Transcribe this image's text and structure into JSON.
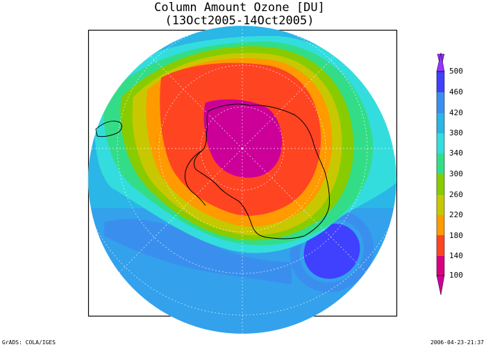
{
  "title": {
    "line1": "Column Amount Ozone [DU]",
    "line2": "(13Oct2005-14Oct2005)"
  },
  "colorbar": {
    "labels": [
      "500",
      "460",
      "420",
      "380",
      "340",
      "300",
      "260",
      "220",
      "180",
      "140",
      "100"
    ],
    "colors_bottom_to_top": [
      "#cc0099",
      "#d8007f",
      "#ff4422",
      "#ff9a00",
      "#c8c800",
      "#88cc00",
      "#33dd88",
      "#33dddd",
      "#2ab6e6",
      "#3a8fee",
      "#4040ff",
      "#9933ff"
    ]
  },
  "map": {
    "projection": "south-polar stereographic",
    "region": "Antarctica / Southern Hemisphere",
    "colors": {
      "low_100": "#cc0099",
      "band_140": "#ff4422",
      "band_220": "#ff9a00",
      "band_260": "#c8c800",
      "band_300": "#88cc00",
      "band_340": "#33dd88",
      "band_380": "#33dddd",
      "band_420": "#2ab6e6",
      "band_460": "#3a8fee",
      "high_500": "#4040ff"
    }
  },
  "footer": {
    "left": "GrADS: COLA/IGES",
    "right": "2006-04-23-21:37"
  }
}
